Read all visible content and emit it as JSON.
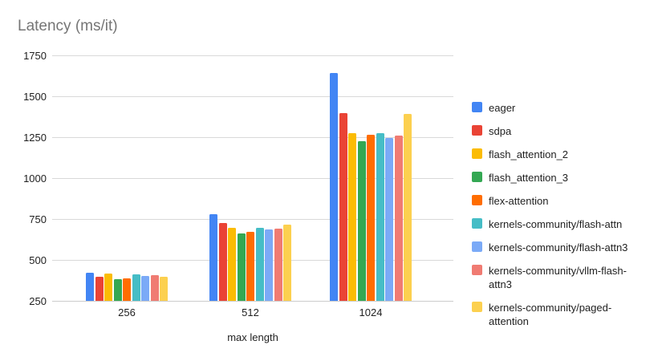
{
  "chart_data": {
    "type": "bar",
    "title": "Latency (ms/it)",
    "xlabel": "max length",
    "ylabel": "",
    "categories": [
      "256",
      "512",
      "1024"
    ],
    "series": [
      {
        "name": "eager",
        "color": "#4285F4",
        "values": [
          420,
          780,
          1640
        ]
      },
      {
        "name": "sdpa",
        "color": "#EA4335",
        "values": [
          397,
          724,
          1399
        ]
      },
      {
        "name": "flash_attention_2",
        "color": "#FBBC04",
        "values": [
          416,
          695,
          1275
        ]
      },
      {
        "name": "flash_attention_3",
        "color": "#34A853",
        "values": [
          381,
          663,
          1226
        ]
      },
      {
        "name": "flex-attention",
        "color": "#FF6D01",
        "values": [
          388,
          670,
          1266
        ]
      },
      {
        "name": "kernels-community/flash-attn",
        "color": "#46BDC6",
        "values": [
          412,
          698,
          1275
        ]
      },
      {
        "name": "kernels-community/flash-attn3",
        "color": "#7BAAF7",
        "values": [
          404,
          688,
          1244
        ]
      },
      {
        "name": "kernels-community/vllm-flash-attn3",
        "color": "#F07B72",
        "values": [
          408,
          691,
          1258
        ]
      },
      {
        "name": "kernels-community/paged-attention",
        "color": "#FCD04F",
        "values": [
          396,
          716,
          1390
        ]
      }
    ],
    "ylim": [
      250,
      1750
    ],
    "yticks": [
      250,
      500,
      750,
      1000,
      1250,
      1500,
      1750
    ],
    "grid": true,
    "legend_position": "right"
  }
}
